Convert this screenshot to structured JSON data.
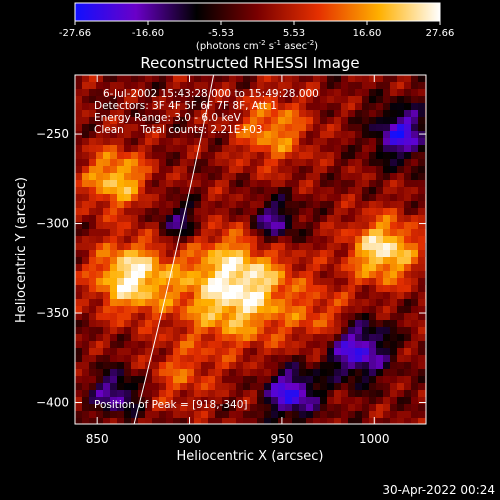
{
  "chart_data": {
    "type": "heatmap",
    "title": "Reconstructed RHESSI Image",
    "xlabel": "Heliocentric X (arcsec)",
    "ylabel": "Heliocentric Y (arcsec)",
    "xlim": [
      838,
      1028
    ],
    "ylim": [
      -412,
      -217
    ],
    "x_ticks": [
      850,
      900,
      950,
      1000
    ],
    "y_ticks": [
      -250,
      -300,
      -350,
      -400
    ],
    "colorbar": {
      "label_parts": [
        "(photons cm",
        "-2",
        " s",
        "-1",
        " asec",
        "-2",
        ")"
      ],
      "range": [
        -27.66,
        27.66
      ],
      "ticks": [
        "-27.66",
        "-16.60",
        "-5.53",
        "5.53",
        "16.60",
        "27.66"
      ],
      "colors": [
        "#1010ff",
        "#6a00c8",
        "#000000",
        "#7a0000",
        "#e53000",
        "#ffb000",
        "#ffffff"
      ]
    },
    "annotations": [
      "6-Jul-2002 15:43:28.000 to 15:49:28.000",
      "Detectors: 3F 4F 5F 6F 7F 8F, Att 1",
      "Energy Range: 3.0 - 6.0 keV",
      "Clean     Total counts: 2.21E+03"
    ],
    "peak_label": "Position of Peak = [918,-340]",
    "limb_curve": [
      [
        870,
        -412
      ],
      [
        888,
        -340
      ],
      [
        905,
        -260
      ],
      [
        913,
        -217
      ]
    ],
    "bright_sources": [
      {
        "x": 925,
        "y": -335,
        "amplitude": 27.66,
        "width": 22
      },
      {
        "x": 868,
        "y": -330,
        "amplitude": 26.0,
        "width": 14
      },
      {
        "x": 1005,
        "y": -315,
        "amplitude": 25.0,
        "width": 13
      },
      {
        "x": 860,
        "y": -275,
        "amplitude": 21.0,
        "width": 12
      },
      {
        "x": 945,
        "y": -248,
        "amplitude": 16.0,
        "width": 14
      },
      {
        "x": 975,
        "y": -355,
        "amplitude": 12.0,
        "width": 12
      },
      {
        "x": 895,
        "y": -385,
        "amplitude": 10.0,
        "width": 12
      }
    ],
    "dark_sources": [
      {
        "x": 945,
        "y": -300,
        "amplitude": -20.0,
        "width": 10
      },
      {
        "x": 990,
        "y": -370,
        "amplitude": -25.0,
        "width": 12
      },
      {
        "x": 955,
        "y": -395,
        "amplitude": -24.0,
        "width": 10
      },
      {
        "x": 1015,
        "y": -250,
        "amplitude": -22.0,
        "width": 11
      },
      {
        "x": 860,
        "y": -395,
        "amplitude": -18.0,
        "width": 9
      },
      {
        "x": 895,
        "y": -300,
        "amplitude": -15.0,
        "width": 9
      }
    ]
  },
  "footer": {
    "timestamp": "30-Apr-2022 00:24"
  }
}
